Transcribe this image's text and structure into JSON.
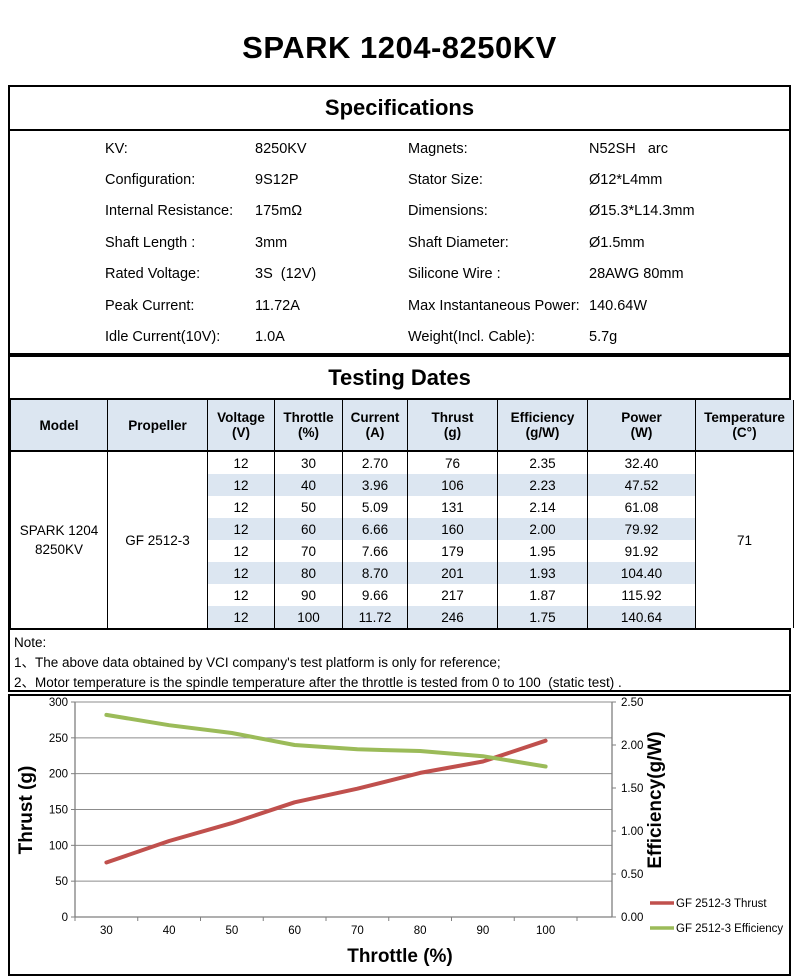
{
  "title": "SPARK 1204-8250KV",
  "specifications": {
    "heading": "Specifications",
    "left": [
      {
        "label": "KV:",
        "value": "8250KV"
      },
      {
        "label": "Configuration:",
        "value": "9S12P"
      },
      {
        "label": "Internal Resistance:",
        "value": "175mΩ"
      },
      {
        "label": "Shaft Length :",
        "value": "3mm"
      },
      {
        "label": "Rated Voltage:",
        "value": "3S  (12V)"
      },
      {
        "label": "Peak Current:",
        "value": "11.72A"
      },
      {
        "label": "Idle Current(10V):",
        "value": "1.0A"
      }
    ],
    "right": [
      {
        "label": "Magnets:",
        "value": "N52SH   arc"
      },
      {
        "label": "Stator Size:",
        "value": "Ø12*L4mm"
      },
      {
        "label": "Dimensions:",
        "value": "Ø15.3*L14.3mm"
      },
      {
        "label": "Shaft Diameter:",
        "value": "Ø1.5mm"
      },
      {
        "label": "Silicone Wire :",
        "value": "28AWG 80mm"
      },
      {
        "label": "Max Instantaneous Power:",
        "value": "140.64W"
      },
      {
        "label": "Weight(Incl. Cable):",
        "value": "5.7g"
      }
    ]
  },
  "testing": {
    "heading": "Testing Dates",
    "columns": [
      {
        "name": "Model",
        "unit": ""
      },
      {
        "name": "Propeller",
        "unit": ""
      },
      {
        "name": "Voltage",
        "unit": "(V)"
      },
      {
        "name": "Throttle",
        "unit": "(%)"
      },
      {
        "name": "Current",
        "unit": "(A)"
      },
      {
        "name": "Thrust",
        "unit": "(g)"
      },
      {
        "name": "Efficiency",
        "unit": "(g/W)"
      },
      {
        "name": "Power",
        "unit": "(W)"
      },
      {
        "name": "Temperature",
        "unit": "(C°)"
      }
    ],
    "model_lines": [
      "SPARK 1204",
      "8250KV"
    ],
    "propeller": "GF 2512-3",
    "temperature": "71",
    "rows": [
      [
        "12",
        "30",
        "2.70",
        "76",
        "2.35",
        "32.40"
      ],
      [
        "12",
        "40",
        "3.96",
        "106",
        "2.23",
        "47.52"
      ],
      [
        "12",
        "50",
        "5.09",
        "131",
        "2.14",
        "61.08"
      ],
      [
        "12",
        "60",
        "6.66",
        "160",
        "2.00",
        "79.92"
      ],
      [
        "12",
        "70",
        "7.66",
        "179",
        "1.95",
        "91.92"
      ],
      [
        "12",
        "80",
        "8.70",
        "201",
        "1.93",
        "104.40"
      ],
      [
        "12",
        "90",
        "9.66",
        "217",
        "1.87",
        "115.92"
      ],
      [
        "12",
        "100",
        "11.72",
        "246",
        "1.75",
        "140.64"
      ]
    ]
  },
  "note": {
    "heading": "Note:",
    "lines": [
      "1、The above data obtained by VCI company's test platform is only for reference;",
      "2、Motor temperature is the spindle temperature after the throttle is tested from 0 to 100  (static test) ."
    ]
  },
  "chart_data": {
    "type": "line",
    "x": [
      30,
      40,
      50,
      60,
      70,
      80,
      90,
      100
    ],
    "series": [
      {
        "name": "GF 2512-3 Thrust",
        "axis": "left",
        "color": "#C0504D",
        "values": [
          76,
          106,
          131,
          160,
          179,
          201,
          217,
          246
        ]
      },
      {
        "name": "GF 2512-3 Efficiency",
        "axis": "right",
        "color": "#9BBB59",
        "values": [
          2.35,
          2.23,
          2.14,
          2.0,
          1.95,
          1.93,
          1.87,
          1.75
        ]
      }
    ],
    "xlabel": "Throttle (%)",
    "ylabel_left": "Thrust (g)",
    "ylabel_right": "Efficiency(g/W)",
    "ylim_left": [
      0,
      300
    ],
    "ytick_left": 50,
    "ylim_right": [
      0,
      2.5
    ],
    "ytick_right": 0.5,
    "grid": true,
    "legend_position": "bottom-right",
    "axis_color": "#7f7f7f",
    "grid_color": "#8c8c8c"
  }
}
